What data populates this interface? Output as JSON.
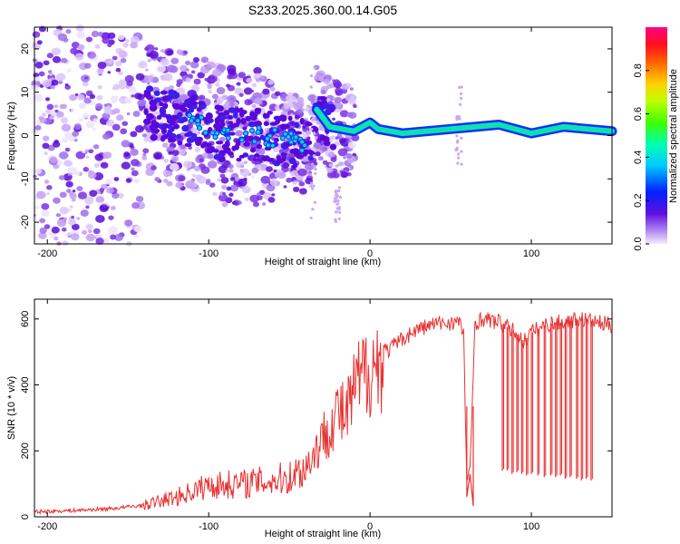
{
  "title": "S233.2025.360.00.14.G05",
  "chart_data": [
    {
      "type": "heatmap",
      "name": "spectrogram",
      "xlabel": "Height of straight line (km)",
      "ylabel": "Frequency (Hz)",
      "xlim": [
        -208,
        150
      ],
      "ylim": [
        -25,
        25
      ],
      "xticks": [
        -200,
        -100,
        0,
        100
      ],
      "yticks": [
        -20,
        -10,
        0,
        10,
        20
      ],
      "colorbar": {
        "label": "Normalized spectral amplitude",
        "range": [
          0,
          1
        ],
        "ticks": [
          0.0,
          0.2,
          0.4,
          0.6,
          0.8
        ]
      },
      "ridge": [
        {
          "x": -130,
          "f": 5
        },
        {
          "x": -110,
          "f": 3
        },
        {
          "x": -90,
          "f": 0
        },
        {
          "x": -70,
          "f": 0
        },
        {
          "x": -50,
          "f": -1
        },
        {
          "x": -37,
          "f": -3
        },
        {
          "x": -33,
          "f": 6
        },
        {
          "x": -25,
          "f": 2
        },
        {
          "x": -10,
          "f": 1
        },
        {
          "x": 0,
          "f": 3
        },
        {
          "x": 5,
          "f": 1.5
        },
        {
          "x": 20,
          "f": 0.5
        },
        {
          "x": 50,
          "f": 1.5
        },
        {
          "x": 80,
          "f": 2.5
        },
        {
          "x": 100,
          "f": 0.5
        },
        {
          "x": 120,
          "f": 2
        },
        {
          "x": 150,
          "f": 1
        }
      ]
    },
    {
      "type": "line",
      "name": "snr",
      "xlabel": "Height of straight line (km)",
      "ylabel": "SNR (10 * v/v)",
      "xlim": [
        -208,
        150
      ],
      "ylim": [
        0,
        660
      ],
      "xticks": [
        -200,
        -100,
        0,
        100
      ],
      "yticks": [
        0,
        200,
        400,
        600
      ],
      "color": "#e83030",
      "series": [
        {
          "name": "SNR",
          "x": [
            -208,
            -180,
            -160,
            -140,
            -120,
            -100,
            -80,
            -60,
            -50,
            -40,
            -30,
            -25,
            -20,
            -15,
            -10,
            -5,
            0,
            5,
            10,
            20,
            30,
            40,
            50,
            55,
            58,
            60,
            62,
            65,
            70,
            80,
            90,
            95,
            100,
            110,
            120,
            130,
            140,
            150
          ],
          "y": [
            15,
            20,
            25,
            35,
            60,
            95,
            100,
            110,
            120,
            150,
            230,
            280,
            320,
            300,
            380,
            420,
            460,
            460,
            500,
            540,
            570,
            585,
            590,
            590,
            560,
            110,
            130,
            590,
            600,
            590,
            560,
            530,
            560,
            585,
            590,
            600,
            590,
            580
          ]
        }
      ],
      "dropouts": [
        {
          "x_from": 60,
          "x_to": 64,
          "y_low": 60
        },
        {
          "x": 82,
          "y_low": 140
        },
        {
          "x": 85,
          "y_low": 140
        },
        {
          "x": 88,
          "y_low": 130
        },
        {
          "x": 91,
          "y_low": 135
        },
        {
          "x": 94,
          "y_low": 130
        },
        {
          "x": 97,
          "y_low": 125
        },
        {
          "x": 100,
          "y_low": 130
        },
        {
          "x": 104,
          "y_low": 125
        },
        {
          "x": 108,
          "y_low": 120
        },
        {
          "x": 112,
          "y_low": 125
        },
        {
          "x": 115,
          "y_low": 120
        },
        {
          "x": 118,
          "y_low": 125
        },
        {
          "x": 121,
          "y_low": 115
        },
        {
          "x": 124,
          "y_low": 120
        },
        {
          "x": 128,
          "y_low": 115
        },
        {
          "x": 131,
          "y_low": 110
        },
        {
          "x": 134,
          "y_low": 115
        },
        {
          "x": 137,
          "y_low": 110
        }
      ]
    }
  ]
}
